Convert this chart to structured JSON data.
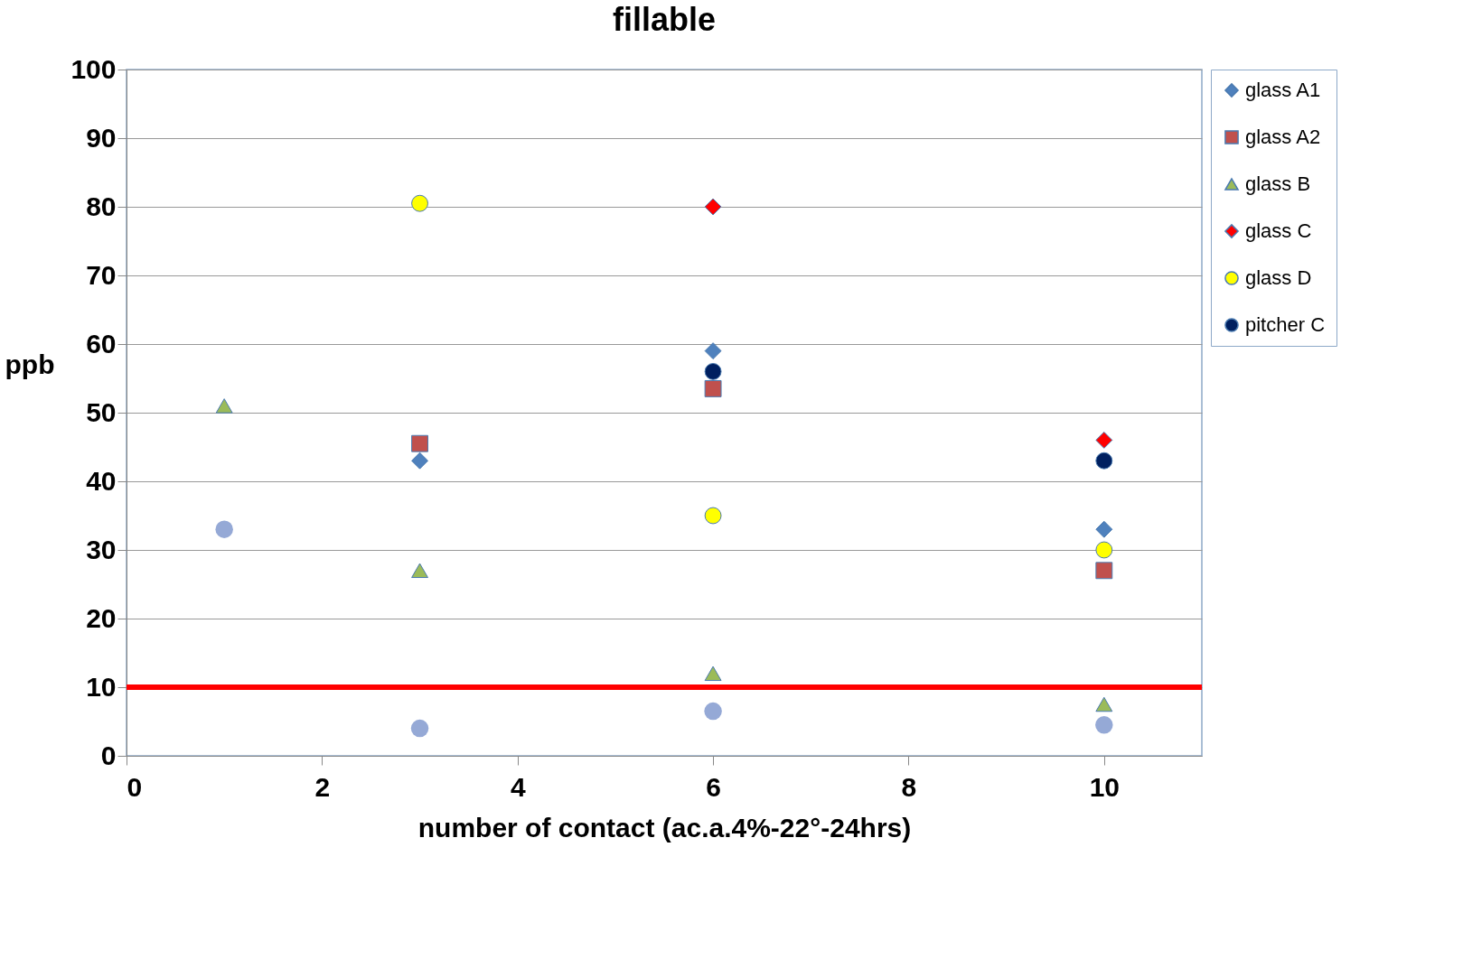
{
  "chart_data": {
    "type": "scatter",
    "title": "fillable",
    "xlabel": "number of contact (ac.a.4%-22°-24hrs)",
    "ylabel": "ppb",
    "series": [
      {
        "name": "glass A1",
        "color": "#4f81bd",
        "marker": "diamond",
        "x": [
          3,
          6,
          10
        ],
        "values": [
          43,
          59,
          33
        ]
      },
      {
        "name": "glass A2",
        "color": "#c0504d",
        "marker": "square",
        "x": [
          3,
          6,
          10
        ],
        "values": [
          45.5,
          53.5,
          27
        ]
      },
      {
        "name": "glass B",
        "color": "#9bbb59",
        "marker": "triangle",
        "x": [
          1,
          3,
          6,
          10
        ],
        "values": [
          51,
          27,
          12,
          7.5
        ]
      },
      {
        "name": "glass C",
        "color": "#ff0000",
        "marker": "diamond",
        "x": [
          6,
          10
        ],
        "values": [
          80,
          46
        ]
      },
      {
        "name": "glass D",
        "color": "#ffff00",
        "marker": "circle",
        "x": [
          3,
          6,
          10
        ],
        "values": [
          80.5,
          35,
          30
        ]
      },
      {
        "name": "pitcher C",
        "color": "#002060",
        "marker": "circle",
        "x": [
          6,
          10
        ],
        "values": [
          56,
          43
        ]
      },
      {
        "color": "#95a9d6",
        "marker": "circle",
        "x": [
          1,
          3,
          6,
          10
        ],
        "values": [
          33,
          4,
          6.5,
          4.5
        ]
      }
    ],
    "ref_lines": [
      {
        "axis": "y",
        "value": 10,
        "color": "#ff0000"
      }
    ],
    "xlim": [
      0,
      11
    ],
    "xticks": [
      0,
      2,
      4,
      6,
      8,
      10
    ],
    "ylim": [
      0,
      100
    ],
    "yticks": [
      0,
      10,
      20,
      30,
      40,
      50,
      60,
      70,
      80,
      90,
      100
    ],
    "grid": "y",
    "legend": "right"
  }
}
